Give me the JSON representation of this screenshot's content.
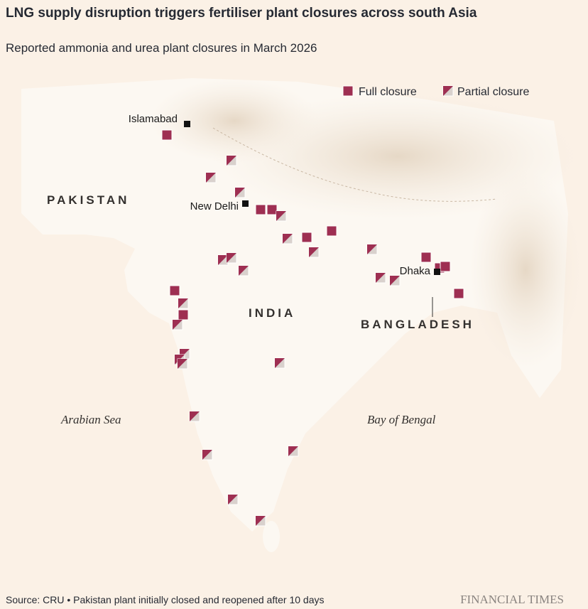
{
  "header": {
    "title": "LNG supply disruption triggers fertiliser plant closures across south Asia",
    "subtitle": "Reported ammonia and urea plant closures in March 2026"
  },
  "legend": {
    "full": "Full closure",
    "partial": "Partial closure"
  },
  "cities": [
    "Islamabad",
    "New Delhi",
    "Dhaka"
  ],
  "countries": [
    "PAKISTAN",
    "INDIA",
    "BANGLADESH"
  ],
  "seas": [
    "Arabian Sea",
    "Bay of Bengal"
  ],
  "footer": {
    "source": "Source: CRU • Pakistan plant initially closed and reopened after 10 days",
    "brand": "FINANCIAL TIMES"
  }
}
